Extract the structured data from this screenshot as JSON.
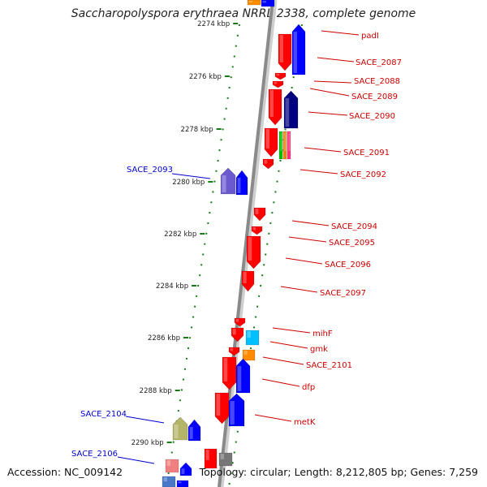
{
  "title": "Saccharopolyspora erythraea NRRL 2338, complete genome",
  "footer": {
    "accession": "Accession: NC_009142",
    "topology": "Topology: circular; Length: 8,212,805 bp; Genes: 7,259"
  },
  "kbp_ticks": [
    "2274 kbp",
    "2276 kbp",
    "2278 kbp",
    "2280 kbp",
    "2282 kbp",
    "2284 kbp",
    "2286 kbp",
    "2288 kbp",
    "2290 kbp"
  ],
  "gene_labels_right": [
    "padI",
    "SACE_2087",
    "SACE_2088",
    "SACE_2089",
    "SACE_2090",
    "SACE_2091",
    "SACE_2092",
    "SACE_2094",
    "SACE_2095",
    "SACE_2096",
    "SACE_2097",
    "mihF",
    "gmk",
    "SACE_2101",
    "dfp",
    "metK"
  ],
  "gene_labels_left": [
    "SACE_2093",
    "SACE_2104",
    "SACE_2106"
  ],
  "colors": {
    "forward_gene": "#ff0000",
    "reverse_gene": "#0000ff",
    "right_label": "#cc0000",
    "left_label": "#0000cc",
    "backbone": "#888888",
    "tick": "#1a7a1a"
  }
}
